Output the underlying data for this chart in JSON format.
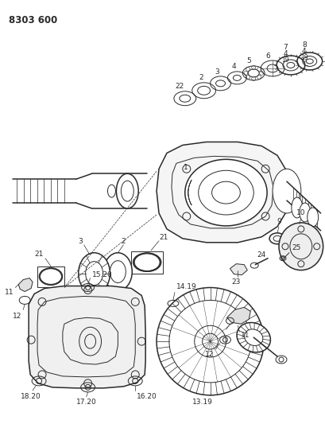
{
  "title": "8303 600",
  "bg_color": "#ffffff",
  "line_color": "#2a2a2a",
  "fig_width": 4.1,
  "fig_height": 5.33,
  "dpi": 100
}
